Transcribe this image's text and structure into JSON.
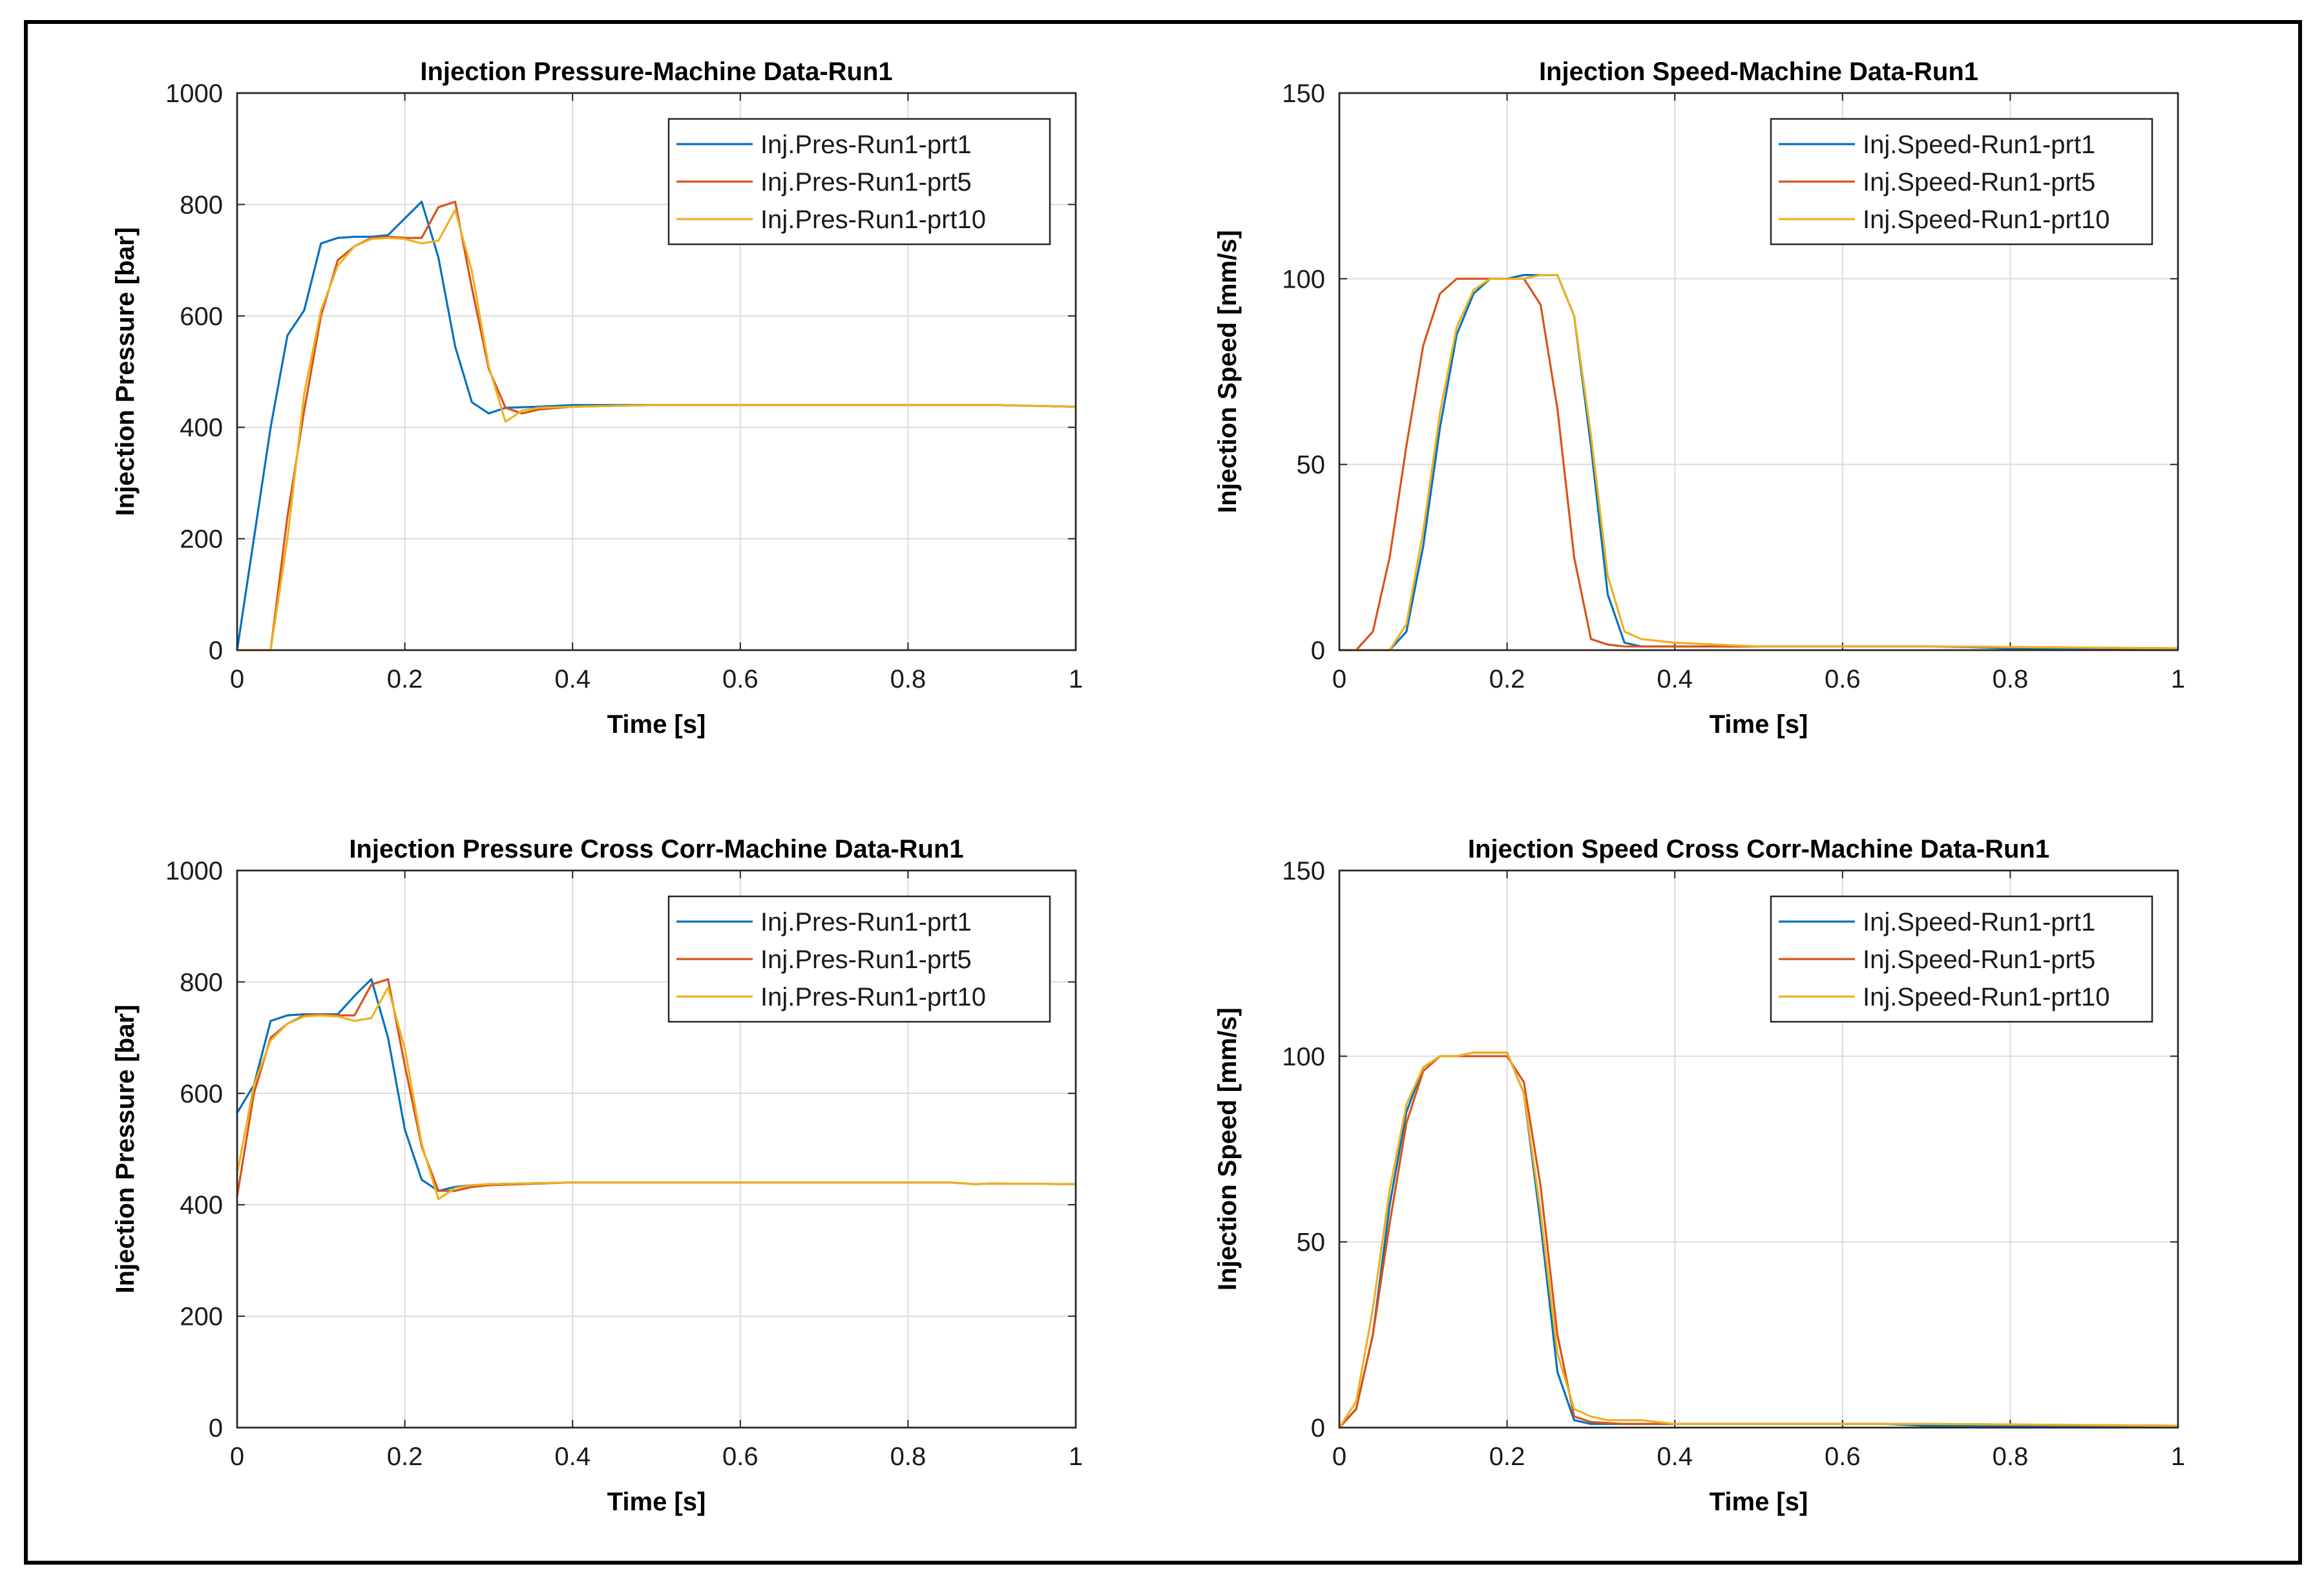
{
  "colors": {
    "prt1": "#0072BD",
    "prt5": "#D95319",
    "prt10": "#EDB120"
  },
  "chart_data": [
    {
      "type": "line",
      "title": "Injection Pressure-Machine Data-Run1",
      "xlabel": "Time [s]",
      "ylabel": "Injection Pressure [bar]",
      "xlim": [
        0,
        1
      ],
      "ylim": [
        0,
        1000
      ],
      "xticks": [
        0,
        0.2,
        0.4,
        0.6,
        0.8,
        1
      ],
      "xtick_labels": [
        "0",
        "0.2",
        "0.4",
        "0.6",
        "0.8",
        "1"
      ],
      "yticks": [
        0,
        200,
        400,
        600,
        800,
        1000
      ],
      "ytick_labels": [
        "0",
        "200",
        "400",
        "600",
        "800",
        "1000"
      ],
      "grid": true,
      "legend_position": "top-right",
      "series": [
        {
          "name": "Inj.Pres-Run1-prt1",
          "color_key": "prt1",
          "x": [
            0,
            0.04,
            0.06,
            0.08,
            0.1,
            0.12,
            0.14,
            0.16,
            0.18,
            0.2,
            0.22,
            0.24,
            0.26,
            0.28,
            0.3,
            0.32,
            0.36,
            0.4,
            0.5,
            0.7,
            0.9,
            1.0
          ],
          "y": [
            0,
            400,
            565,
            610,
            730,
            740,
            742,
            742,
            745,
            775,
            805,
            705,
            545,
            445,
            425,
            435,
            437,
            440,
            440,
            440,
            440,
            437
          ]
        },
        {
          "name": "Inj.Pres-Run1-prt5",
          "color_key": "prt5",
          "x": [
            0,
            0.04,
            0.06,
            0.08,
            0.1,
            0.12,
            0.14,
            0.16,
            0.18,
            0.2,
            0.22,
            0.24,
            0.26,
            0.28,
            0.3,
            0.32,
            0.34,
            0.36,
            0.4,
            0.5,
            0.7,
            0.9,
            1.0
          ],
          "y": [
            0,
            0,
            240,
            430,
            600,
            700,
            725,
            740,
            742,
            740,
            740,
            795,
            805,
            650,
            505,
            435,
            425,
            432,
            437,
            440,
            440,
            440,
            437
          ]
        },
        {
          "name": "Inj.Pres-Run1-prt10",
          "color_key": "prt10",
          "x": [
            0,
            0.04,
            0.06,
            0.08,
            0.1,
            0.12,
            0.14,
            0.16,
            0.18,
            0.2,
            0.22,
            0.24,
            0.26,
            0.28,
            0.3,
            0.32,
            0.34,
            0.36,
            0.4,
            0.5,
            0.7,
            0.9,
            1.0
          ],
          "y": [
            0,
            0,
            200,
            460,
            610,
            690,
            725,
            738,
            740,
            738,
            730,
            735,
            790,
            680,
            510,
            410,
            430,
            435,
            437,
            440,
            440,
            440,
            437
          ]
        }
      ]
    },
    {
      "type": "line",
      "title": "Injection Speed-Machine Data-Run1",
      "xlabel": "Time [s]",
      "ylabel": "Injection Speed [mm/s]",
      "xlim": [
        0,
        1
      ],
      "ylim": [
        0,
        150
      ],
      "xticks": [
        0,
        0.2,
        0.4,
        0.6,
        0.8,
        1
      ],
      "xtick_labels": [
        "0",
        "0.2",
        "0.4",
        "0.6",
        "0.8",
        "1"
      ],
      "yticks": [
        0,
        50,
        100,
        150
      ],
      "ytick_labels": [
        "0",
        "50",
        "100",
        "150"
      ],
      "grid": true,
      "legend_position": "top-right",
      "series": [
        {
          "name": "Inj.Speed-Run1-prt1",
          "color_key": "prt1",
          "x": [
            0,
            0.06,
            0.08,
            0.1,
            0.12,
            0.14,
            0.16,
            0.18,
            0.2,
            0.22,
            0.24,
            0.26,
            0.28,
            0.3,
            0.32,
            0.34,
            0.36,
            0.4,
            0.5,
            0.7,
            0.75,
            0.8,
            1.0
          ],
          "y": [
            0,
            0,
            5,
            28,
            60,
            85,
            96,
            100,
            100,
            101,
            101,
            101,
            90,
            55,
            15,
            2,
            1,
            1,
            1,
            1,
            0.8,
            0.5,
            0.5
          ]
        },
        {
          "name": "Inj.Speed-Run1-prt5",
          "color_key": "prt5",
          "x": [
            0,
            0.02,
            0.04,
            0.06,
            0.08,
            0.1,
            0.12,
            0.14,
            0.16,
            0.18,
            0.2,
            0.22,
            0.24,
            0.26,
            0.28,
            0.3,
            0.32,
            0.34,
            0.4,
            0.5,
            0.7,
            1.0
          ],
          "y": [
            0,
            0,
            5,
            25,
            55,
            82,
            96,
            100,
            100,
            100,
            100,
            100,
            93,
            65,
            25,
            3,
            1.5,
            1,
            1,
            1,
            1,
            0.5
          ]
        },
        {
          "name": "Inj.Speed-Run1-prt10",
          "color_key": "prt10",
          "x": [
            0,
            0.06,
            0.08,
            0.1,
            0.12,
            0.14,
            0.16,
            0.18,
            0.2,
            0.22,
            0.24,
            0.26,
            0.28,
            0.3,
            0.32,
            0.34,
            0.36,
            0.4,
            0.5,
            0.7,
            1.0
          ],
          "y": [
            0,
            0,
            7,
            32,
            64,
            87,
            97,
            100,
            100,
            100,
            101,
            101,
            90,
            58,
            20,
            5,
            3,
            2,
            1,
            1,
            0.5
          ]
        }
      ]
    },
    {
      "type": "line",
      "title": "Injection Pressure Cross Corr-Machine Data-Run1",
      "xlabel": "Time [s]",
      "ylabel": "Injection Pressure [bar]",
      "xlim": [
        0,
        1
      ],
      "ylim": [
        0,
        1000
      ],
      "xticks": [
        0,
        0.2,
        0.4,
        0.6,
        0.8,
        1
      ],
      "xtick_labels": [
        "0",
        "0.2",
        "0.4",
        "0.6",
        "0.8",
        "1"
      ],
      "yticks": [
        0,
        200,
        400,
        600,
        800,
        1000
      ],
      "ytick_labels": [
        "0",
        "200",
        "400",
        "600",
        "800",
        "1000"
      ],
      "grid": true,
      "legend_position": "top-right",
      "series": [
        {
          "name": "Inj.Pres-Run1-prt1",
          "color_key": "prt1",
          "x": [
            0,
            0.02,
            0.04,
            0.06,
            0.08,
            0.1,
            0.12,
            0.14,
            0.16,
            0.18,
            0.2,
            0.22,
            0.24,
            0.26,
            0.28,
            0.3,
            0.4,
            0.6,
            0.85,
            0.88,
            0.9,
            1.0
          ],
          "y": [
            565,
            615,
            730,
            740,
            742,
            742,
            742,
            775,
            805,
            700,
            535,
            445,
            425,
            432,
            435,
            437,
            440,
            440,
            440,
            437,
            438,
            437
          ]
        },
        {
          "name": "Inj.Pres-Run1-prt5",
          "color_key": "prt5",
          "x": [
            0,
            0.02,
            0.04,
            0.06,
            0.08,
            0.1,
            0.12,
            0.14,
            0.16,
            0.18,
            0.2,
            0.22,
            0.24,
            0.26,
            0.28,
            0.3,
            0.4,
            0.6,
            0.85,
            0.88,
            0.9,
            1.0
          ],
          "y": [
            415,
            600,
            700,
            725,
            740,
            742,
            740,
            740,
            795,
            805,
            650,
            505,
            425,
            425,
            432,
            435,
            440,
            440,
            440,
            437,
            438,
            437
          ]
        },
        {
          "name": "Inj.Pres-Run1-prt10",
          "color_key": "prt10",
          "x": [
            0,
            0.02,
            0.04,
            0.06,
            0.08,
            0.1,
            0.12,
            0.14,
            0.16,
            0.18,
            0.2,
            0.22,
            0.24,
            0.26,
            0.28,
            0.3,
            0.4,
            0.6,
            0.85,
            0.88,
            0.9,
            1.0
          ],
          "y": [
            455,
            615,
            695,
            725,
            738,
            740,
            738,
            730,
            735,
            790,
            680,
            510,
            410,
            430,
            435,
            437,
            440,
            440,
            440,
            437,
            438,
            437
          ]
        }
      ]
    },
    {
      "type": "line",
      "title": "Injection Speed Cross Corr-Machine Data-Run1",
      "xlabel": "Time [s]",
      "ylabel": "Injection Speed [mm/s]",
      "xlim": [
        0,
        1
      ],
      "ylim": [
        0,
        150
      ],
      "xticks": [
        0,
        0.2,
        0.4,
        0.6,
        0.8,
        1
      ],
      "xtick_labels": [
        "0",
        "0.2",
        "0.4",
        "0.6",
        "0.8",
        "1"
      ],
      "yticks": [
        0,
        50,
        100,
        150
      ],
      "ytick_labels": [
        "0",
        "50",
        "100",
        "150"
      ],
      "grid": true,
      "legend_position": "top-right",
      "series": [
        {
          "name": "Inj.Speed-Run1-prt1",
          "color_key": "prt1",
          "x": [
            0,
            0.02,
            0.04,
            0.06,
            0.08,
            0.1,
            0.12,
            0.14,
            0.16,
            0.18,
            0.2,
            0.22,
            0.24,
            0.26,
            0.28,
            0.3,
            0.32,
            0.34,
            0.4,
            0.6,
            0.65,
            0.7,
            1.0
          ],
          "y": [
            0,
            5,
            25,
            60,
            85,
            97,
            100,
            100,
            101,
            101,
            101,
            90,
            55,
            15,
            2,
            1,
            1,
            1,
            1,
            1,
            1,
            0.5,
            0.5
          ]
        },
        {
          "name": "Inj.Speed-Run1-prt5",
          "color_key": "prt5",
          "x": [
            0,
            0.02,
            0.04,
            0.06,
            0.08,
            0.1,
            0.12,
            0.14,
            0.16,
            0.18,
            0.2,
            0.22,
            0.24,
            0.26,
            0.28,
            0.3,
            0.34,
            0.4,
            0.6,
            0.7,
            1.0
          ],
          "y": [
            0,
            5,
            25,
            55,
            82,
            96,
            100,
            100,
            100,
            100,
            100,
            93,
            65,
            25,
            3,
            1.5,
            1,
            1,
            1,
            1,
            0.5
          ]
        },
        {
          "name": "Inj.Speed-Run1-prt10",
          "color_key": "prt10",
          "x": [
            0,
            0.02,
            0.04,
            0.06,
            0.08,
            0.1,
            0.12,
            0.14,
            0.16,
            0.18,
            0.2,
            0.22,
            0.24,
            0.26,
            0.28,
            0.3,
            0.32,
            0.36,
            0.4,
            0.6,
            0.7,
            1.0
          ],
          "y": [
            0,
            7,
            32,
            64,
            87,
            97,
            100,
            100,
            101,
            101,
            101,
            90,
            58,
            20,
            5,
            3,
            2,
            2,
            1,
            1,
            1,
            0.5
          ]
        }
      ]
    }
  ]
}
